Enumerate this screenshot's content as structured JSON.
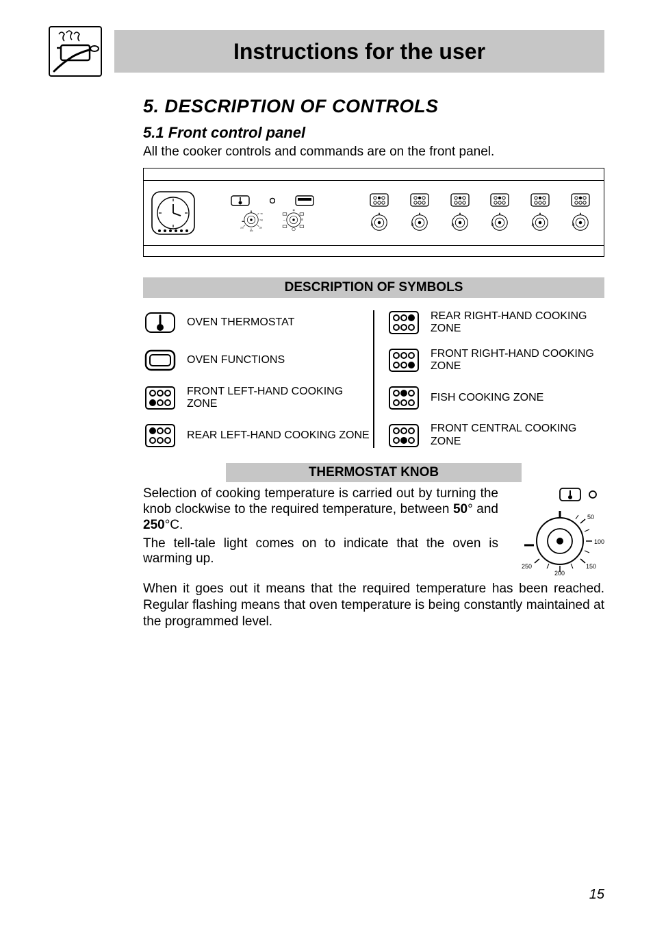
{
  "header": {
    "title": "Instructions for the user"
  },
  "section": {
    "number_title": "5.  DESCRIPTION OF CONTROLS",
    "sub_title": "5.1 Front control panel",
    "intro": "All the cooker controls and commands are on the front panel."
  },
  "symbols": {
    "heading": "DESCRIPTION OF SYMBOLS",
    "left": [
      {
        "label": "OVEN THERMOSTAT"
      },
      {
        "label": "OVEN FUNCTIONS"
      },
      {
        "label": "FRONT LEFT-HAND COOKING ZONE"
      },
      {
        "label": "REAR LEFT-HAND COOKING ZONE"
      }
    ],
    "right": [
      {
        "label": "REAR RIGHT-HAND COOKING ZONE"
      },
      {
        "label": "FRONT RIGHT-HAND COOKING ZONE"
      },
      {
        "label": "FISH COOKING ZONE"
      },
      {
        "label": "FRONT CENTRAL COOKING ZONE"
      }
    ]
  },
  "thermostat": {
    "heading": "THERMOSTAT KNOB",
    "para1_pre": "Selection of cooking temperature is carried out by turning the knob clockwise to the required temperature, between  ",
    "t1": "50",
    "mid": "° and ",
    "t2": "250",
    "post": "°C.",
    "para2": "The tell-tale light comes on to indicate that the oven is warming up.",
    "para3": "When it goes out it means that the required temperature has been reached. Regular flashing means that oven temperature is being constantly maintained at the programmed level.",
    "dial": {
      "labels": [
        "50",
        "100",
        "150",
        "200",
        "250"
      ]
    }
  },
  "panel": {
    "thermo_dial": {
      "labels": [
        "50",
        "100",
        "150",
        "200",
        "250"
      ]
    },
    "hob_count": 6
  },
  "page_number": "15",
  "colors": {
    "band": "#c6c6c6",
    "text": "#000000",
    "bg": "#ffffff"
  },
  "typography": {
    "title_fontsize": 32,
    "h2_fontsize": 27,
    "h3_fontsize": 22,
    "body_fontsize": 19,
    "symbol_fontsize": 16
  }
}
